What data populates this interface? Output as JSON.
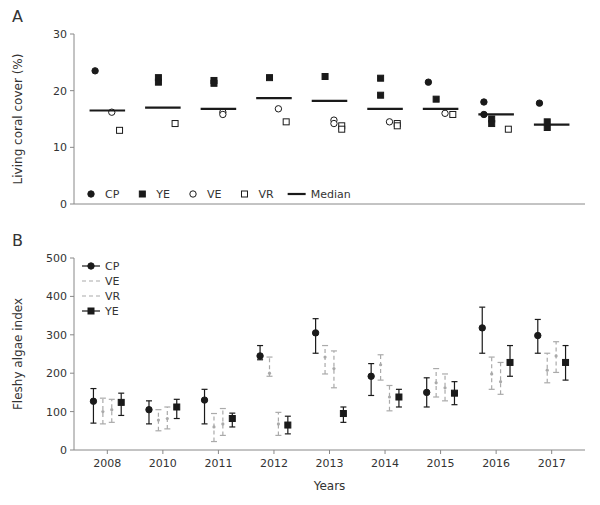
{
  "chart_data": [
    {
      "type": "scatter",
      "title": "A",
      "y_label": "Living coral cover (%)",
      "categories": [
        "2008",
        "2010",
        "2011",
        "2012",
        "2013",
        "2014",
        "2015",
        "2016",
        "2017"
      ],
      "ylim": [
        0,
        30
      ],
      "yticks": [
        0,
        10,
        20,
        30
      ],
      "grid": false,
      "legend": "lower-left",
      "tick_labels": "y",
      "series": [
        {
          "name": "CP",
          "color": "#1a1a1a",
          "marker": "circle",
          "x": [
            "2008",
            "2015",
            "2016",
            "2016",
            "2017"
          ],
          "values": [
            23.5,
            21.5,
            18.0,
            15.8,
            17.8
          ]
        },
        {
          "name": "YE",
          "color": "#1a1a1a",
          "marker": "square",
          "x": [
            "2010",
            "2010",
            "2011",
            "2011",
            "2012",
            "2013",
            "2014",
            "2014",
            "2015",
            "2016",
            "2016",
            "2017",
            "2017"
          ],
          "values": [
            22.3,
            21.5,
            21.8,
            21.3,
            22.3,
            22.5,
            22.2,
            19.2,
            18.5,
            15.0,
            14.2,
            14.5,
            13.5
          ]
        },
        {
          "name": "VE",
          "color": "#1a1a1a",
          "marker": "open-circle",
          "x": [
            "2008",
            "2011",
            "2011",
            "2012",
            "2013",
            "2013",
            "2014",
            "2015"
          ],
          "values": [
            16.2,
            16.2,
            15.8,
            16.8,
            14.8,
            14.2,
            14.5,
            16.0
          ]
        },
        {
          "name": "VR",
          "color": "#1a1a1a",
          "marker": "open-square",
          "x": [
            "2008",
            "2010",
            "2012",
            "2013",
            "2013",
            "2014",
            "2014",
            "2015",
            "2016"
          ],
          "values": [
            13.0,
            14.2,
            14.5,
            13.8,
            13.2,
            14.2,
            13.8,
            15.8,
            13.2
          ]
        },
        {
          "name": "Median",
          "type": "median",
          "color": "#1a1a1a",
          "line_style": "solid",
          "values": [
            16.5,
            17.0,
            16.8,
            18.7,
            18.2,
            16.8,
            16.8,
            15.8,
            14.0
          ]
        }
      ]
    },
    {
      "type": "errorbar",
      "title": "B",
      "x_label": "Years",
      "y_label": "Fleshy algae index",
      "categories": [
        "2008",
        "2010",
        "2011",
        "2012",
        "2013",
        "2014",
        "2015",
        "2016",
        "2017"
      ],
      "ylim": [
        0,
        500
      ],
      "yticks": [
        0,
        100,
        200,
        300,
        400,
        500
      ],
      "grid": false,
      "legend": "upper-left",
      "series": [
        {
          "name": "CP",
          "color": "#1a1a1a",
          "marker": "circle",
          "line_style": "solid",
          "values": [
            127,
            105,
            130,
            245,
            305,
            192,
            150,
            318,
            298
          ],
          "low": [
            70,
            68,
            68,
            235,
            252,
            142,
            112,
            252,
            252
          ],
          "high": [
            160,
            128,
            158,
            272,
            342,
            225,
            188,
            372,
            340
          ]
        },
        {
          "name": "VE",
          "color": "#aaaaaa",
          "marker": "none",
          "line_style": "dashed",
          "values": [
            100,
            78,
            60,
            200,
            242,
            222,
            175,
            198,
            208
          ],
          "low": [
            68,
            50,
            22,
            192,
            198,
            182,
            138,
            158,
            175
          ],
          "high": [
            135,
            105,
            95,
            242,
            272,
            248,
            212,
            242,
            252
          ]
        },
        {
          "name": "VR",
          "color": "#aaaaaa",
          "marker": "none",
          "line_style": "dashed",
          "values": [
            105,
            82,
            68,
            68,
            212,
            138,
            162,
            178,
            245
          ],
          "low": [
            72,
            55,
            38,
            38,
            162,
            102,
            128,
            145,
            202
          ],
          "high": [
            132,
            112,
            108,
            98,
            258,
            168,
            198,
            228,
            282
          ]
        },
        {
          "name": "YE",
          "color": "#1a1a1a",
          "marker": "square",
          "line_style": "solid",
          "values": [
            124,
            112,
            82,
            65,
            95,
            138,
            148,
            228,
            228
          ],
          "low": [
            90,
            82,
            60,
            42,
            72,
            112,
            118,
            192,
            182
          ],
          "high": [
            148,
            132,
            96,
            88,
            112,
            158,
            178,
            272,
            272
          ]
        }
      ]
    }
  ]
}
